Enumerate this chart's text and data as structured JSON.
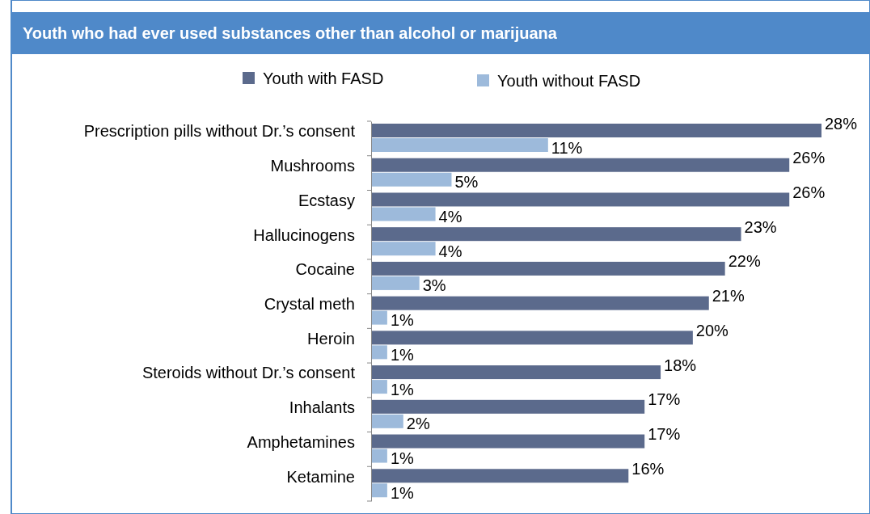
{
  "chart_data": {
    "type": "bar",
    "orientation": "horizontal",
    "title": "Youth who had ever used substances other than alcohol or marijuana",
    "categories": [
      "Prescription pills without Dr.’s consent",
      "Mushrooms",
      "Ecstasy",
      "Hallucinogens",
      "Cocaine",
      "Crystal meth",
      "Heroin",
      "Steroids without Dr.’s consent",
      "Inhalants",
      "Amphetamines",
      "Ketamine"
    ],
    "series": [
      {
        "name": "Youth with FASD",
        "color": "#5b6a8c",
        "values": [
          28,
          26,
          26,
          23,
          22,
          21,
          20,
          18,
          17,
          17,
          16
        ],
        "value_labels": [
          "28%",
          "26%",
          "26%",
          "23%",
          "22%",
          "21%",
          "20%",
          "18%",
          "17%",
          "17%",
          "16%"
        ]
      },
      {
        "name": "Youth without FASD",
        "color": "#9dbadb",
        "values": [
          11,
          5,
          4,
          4,
          3,
          1,
          1,
          1,
          2,
          1,
          1
        ],
        "value_labels": [
          "11%",
          "5%",
          "4%",
          "4%",
          "3%",
          "1%",
          "1%",
          "1%",
          "2%",
          "1%",
          "1%"
        ]
      }
    ],
    "legend": "top"
  }
}
